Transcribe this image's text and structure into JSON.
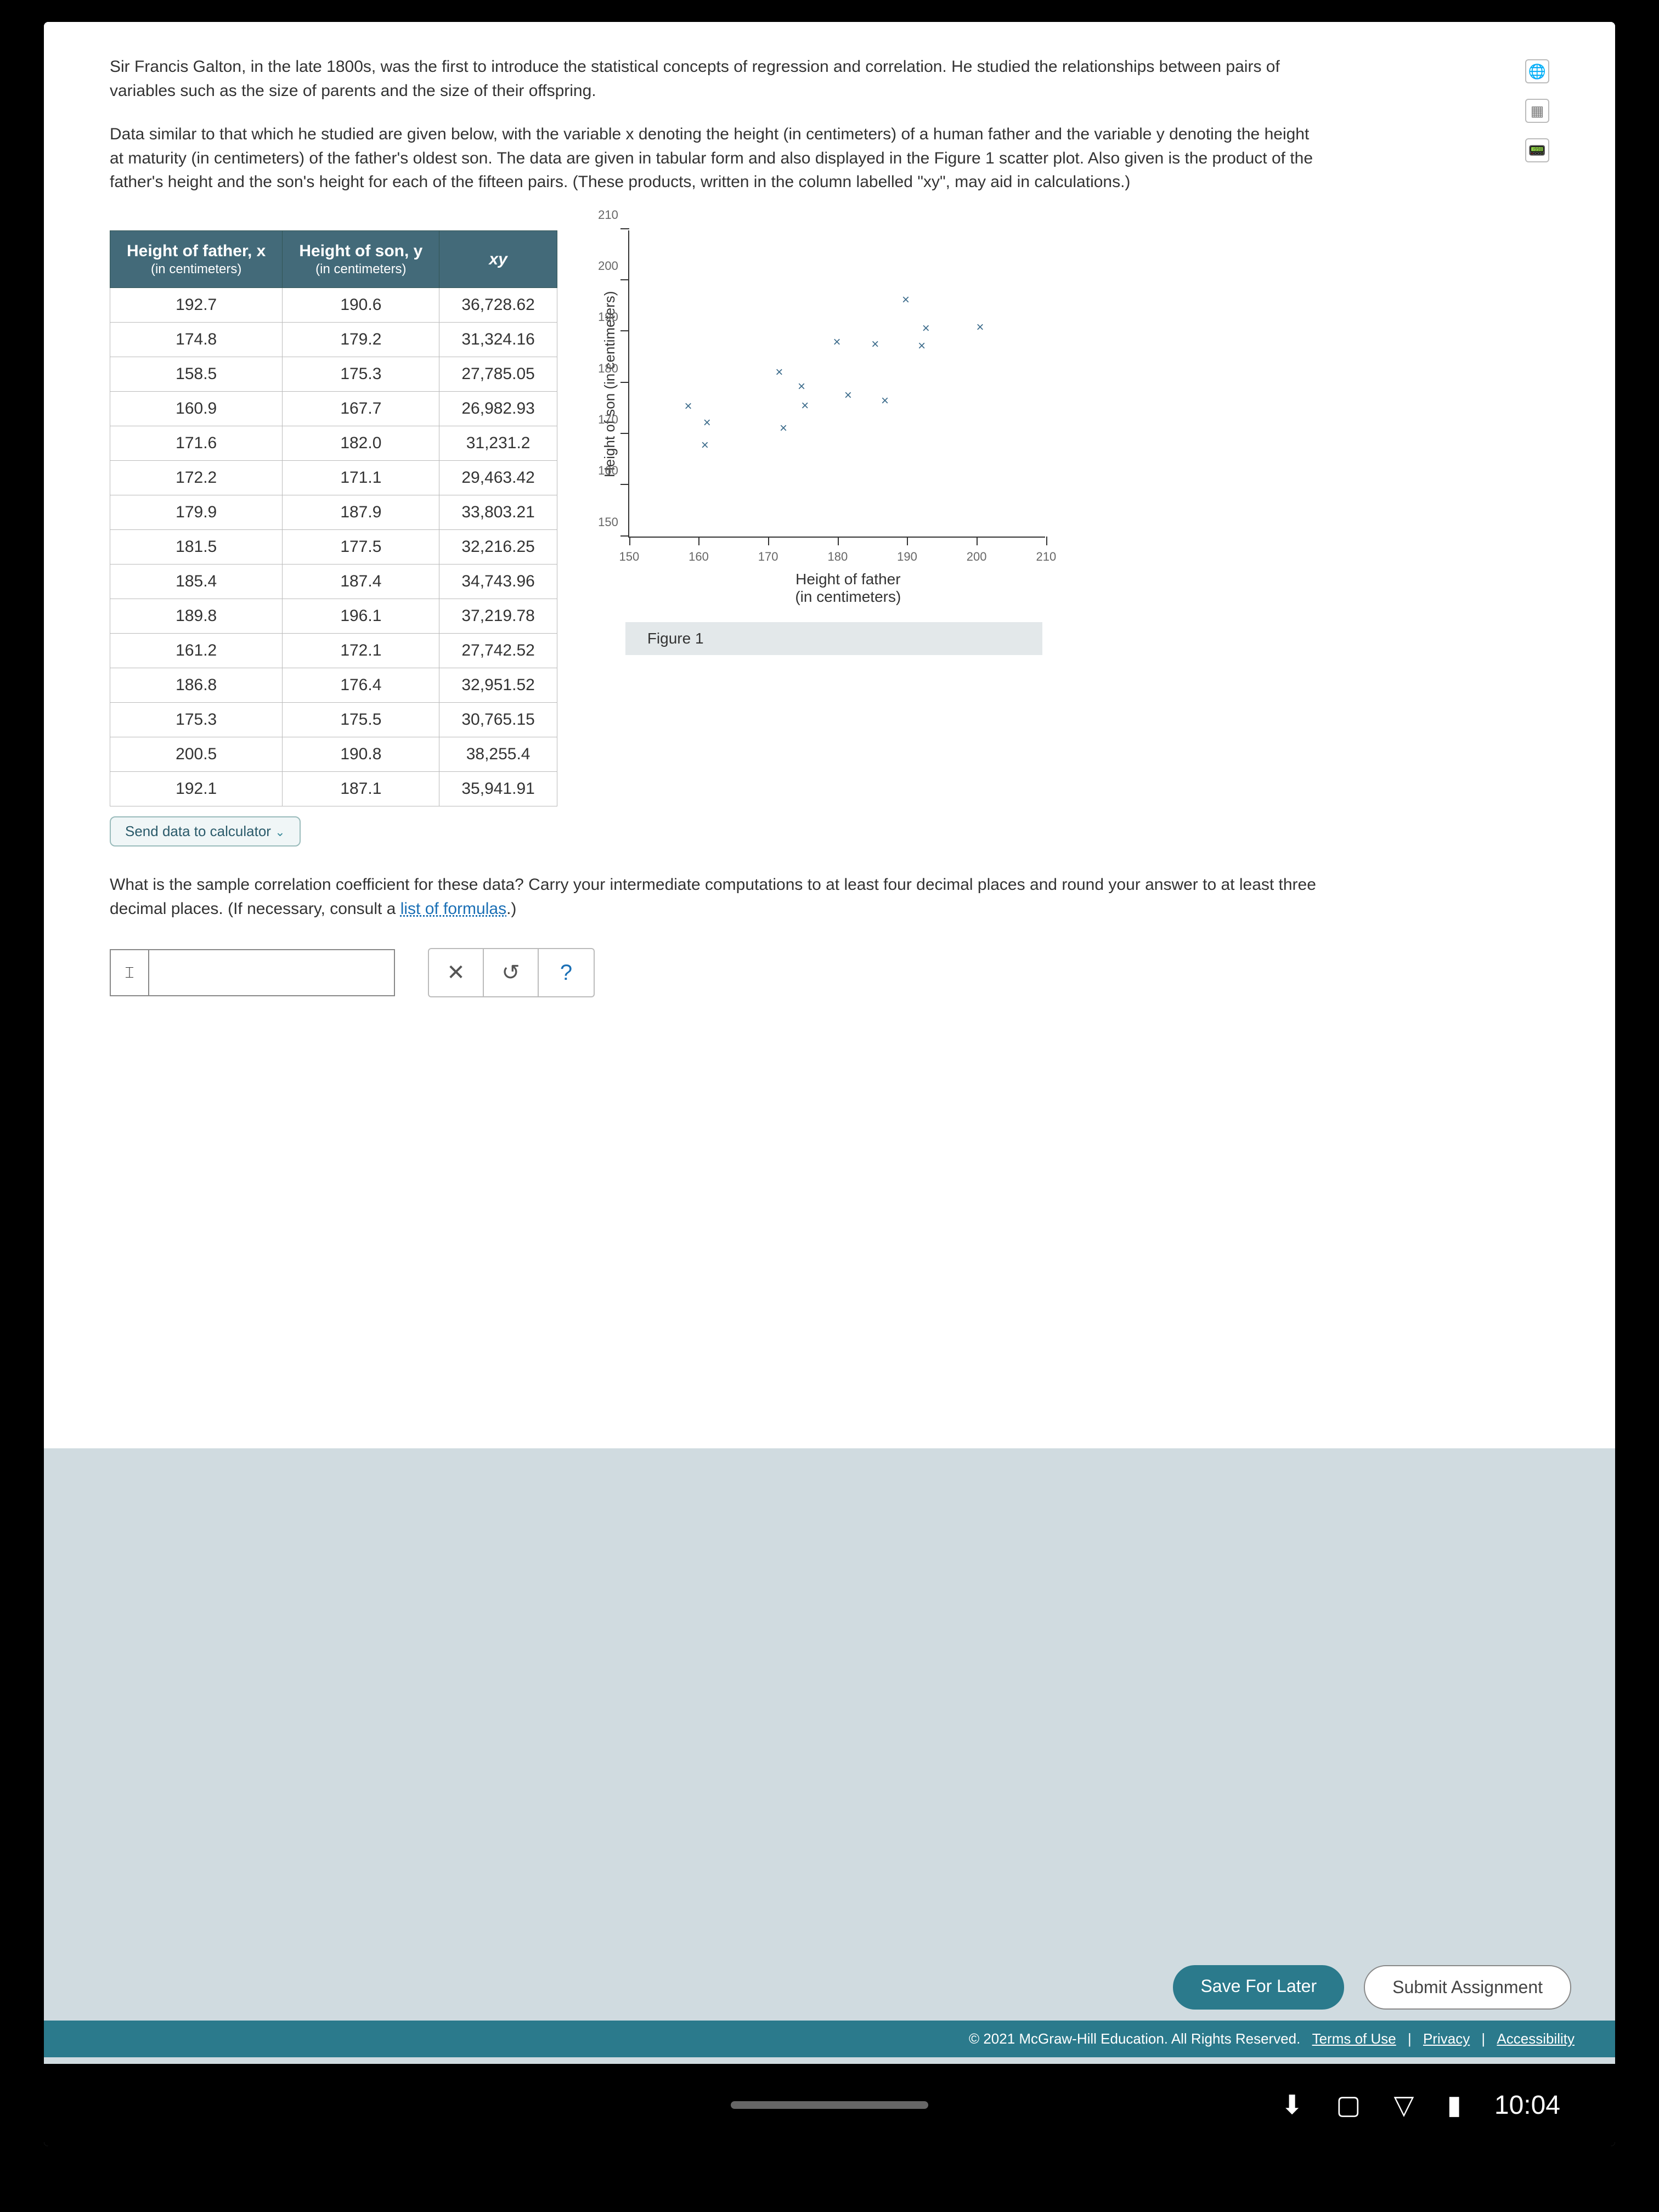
{
  "intro": {
    "p1": "Sir Francis Galton, in the late 1800s, was the first to introduce the statistical concepts of regression and correlation. He studied the relationships between pairs of variables such as the size of parents and the size of their offspring.",
    "p2": "Data similar to that which he studied are given below, with the variable x denoting the height (in centimeters) of a human father and the variable y denoting the height at maturity (in centimeters) of the father's oldest son. The data are given in tabular form and also displayed in the Figure 1 scatter plot. Also given is the product of the father's height and the son's height for each of the fifteen pairs. (These products, written in the column labelled \"xy\", may aid in calculations.)"
  },
  "table": {
    "headers": {
      "col1_top": "Height of father, x",
      "col1_sub": "(in centimeters)",
      "col2_top": "Height of son, y",
      "col2_sub": "(in centimeters)",
      "col3": "xy"
    },
    "rows": [
      {
        "x": "192.7",
        "y": "190.6",
        "xy": "36,728.62"
      },
      {
        "x": "174.8",
        "y": "179.2",
        "xy": "31,324.16"
      },
      {
        "x": "158.5",
        "y": "175.3",
        "xy": "27,785.05"
      },
      {
        "x": "160.9",
        "y": "167.7",
        "xy": "26,982.93"
      },
      {
        "x": "171.6",
        "y": "182.0",
        "xy": "31,231.2"
      },
      {
        "x": "172.2",
        "y": "171.1",
        "xy": "29,463.42"
      },
      {
        "x": "179.9",
        "y": "187.9",
        "xy": "33,803.21"
      },
      {
        "x": "181.5",
        "y": "177.5",
        "xy": "32,216.25"
      },
      {
        "x": "185.4",
        "y": "187.4",
        "xy": "34,743.96"
      },
      {
        "x": "189.8",
        "y": "196.1",
        "xy": "37,219.78"
      },
      {
        "x": "161.2",
        "y": "172.1",
        "xy": "27,742.52"
      },
      {
        "x": "186.8",
        "y": "176.4",
        "xy": "32,951.52"
      },
      {
        "x": "175.3",
        "y": "175.5",
        "xy": "30,765.15"
      },
      {
        "x": "200.5",
        "y": "190.8",
        "xy": "38,255.4"
      },
      {
        "x": "192.1",
        "y": "187.1",
        "xy": "35,941.91"
      }
    ],
    "send_label": "Send data to calculator"
  },
  "chart": {
    "type": "scatter",
    "ylabel": "Height of son\n(in centimeters)",
    "xlabel_top": "Height of father",
    "xlabel_bot": "(in centimeters)",
    "caption": "Figure 1",
    "xlim": [
      150,
      210
    ],
    "ylim": [
      150,
      210
    ],
    "xticks": [
      150,
      160,
      170,
      180,
      190,
      200,
      210
    ],
    "yticks": [
      150,
      160,
      170,
      180,
      190,
      200,
      210
    ],
    "points": [
      {
        "x": 192.7,
        "y": 190.6
      },
      {
        "x": 174.8,
        "y": 179.2
      },
      {
        "x": 158.5,
        "y": 175.3
      },
      {
        "x": 160.9,
        "y": 167.7
      },
      {
        "x": 171.6,
        "y": 182.0
      },
      {
        "x": 172.2,
        "y": 171.1
      },
      {
        "x": 179.9,
        "y": 187.9
      },
      {
        "x": 181.5,
        "y": 177.5
      },
      {
        "x": 185.4,
        "y": 187.4
      },
      {
        "x": 189.8,
        "y": 196.1
      },
      {
        "x": 161.2,
        "y": 172.1
      },
      {
        "x": 186.8,
        "y": 176.4
      },
      {
        "x": 175.3,
        "y": 175.5
      },
      {
        "x": 200.5,
        "y": 190.8
      },
      {
        "x": 192.1,
        "y": 187.1
      }
    ],
    "marker": "×",
    "marker_color": "#3a6a8a"
  },
  "question": {
    "text": "What is the sample correlation coefficient for these data? Carry your intermediate computations to at least four decimal places and round your answer to at least three decimal places. (If necessary, consult a ",
    "link": "list of formulas",
    "tail": ".)"
  },
  "answer_value": "",
  "buttons": {
    "save": "Save For Later",
    "submit": "Submit Assignment"
  },
  "footer": {
    "copyright": "© 2021 McGraw-Hill Education. All Rights Reserved.",
    "terms": "Terms of Use",
    "privacy": "Privacy",
    "access": "Accessibility"
  },
  "status": {
    "time": "10:04"
  }
}
